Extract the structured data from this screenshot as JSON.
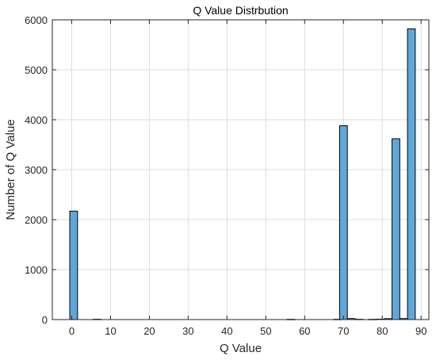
{
  "chart_data": {
    "type": "bar",
    "title": "Q Value Distrbution",
    "xlabel": "Q Value",
    "ylabel": "Number of Q Value",
    "xlim": [
      -5,
      92
    ],
    "ylim": [
      0,
      6000
    ],
    "xticks": [
      0,
      10,
      20,
      30,
      40,
      50,
      60,
      70,
      80,
      90
    ],
    "yticks": [
      0,
      1000,
      2000,
      3000,
      4000,
      5000,
      6000
    ],
    "grid": true,
    "bar_width": 2,
    "colors": {
      "bar_fill": "#5fa7da",
      "bar_edge": "#000000",
      "grid": "#dcdcdc",
      "axis": "#262626"
    },
    "bins": [
      {
        "x": 0.5,
        "value": 2170
      },
      {
        "x": 6.5,
        "value": 6
      },
      {
        "x": 56.5,
        "value": 4
      },
      {
        "x": 68.5,
        "value": 5
      },
      {
        "x": 70.0,
        "value": 3880
      },
      {
        "x": 72.0,
        "value": 20
      },
      {
        "x": 74.0,
        "value": 6
      },
      {
        "x": 77.5,
        "value": 4
      },
      {
        "x": 79.5,
        "value": 8
      },
      {
        "x": 81.5,
        "value": 18
      },
      {
        "x": 83.5,
        "value": 3620
      },
      {
        "x": 85.5,
        "value": 20
      },
      {
        "x": 87.5,
        "value": 5820
      }
    ]
  }
}
